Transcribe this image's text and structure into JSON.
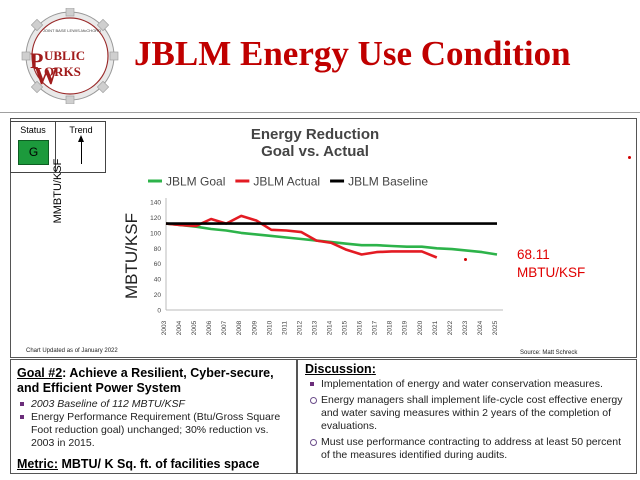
{
  "header": {
    "title": "JBLM Energy Use Condition",
    "logo_text": "PUBLIC WORKS",
    "logo_small": "JOINT BASE LEWIS-McCHORD"
  },
  "status": {
    "status_label": "Status",
    "status_value": "G",
    "trend_label": "Trend",
    "trend_icon": "arrow-up-icon",
    "status_color": "#1c9a3c"
  },
  "side_label": "MMBTU/KSF",
  "footer": {
    "updated": "Chart Updated as of January 2022",
    "source": "Source:  Matt Schreck"
  },
  "annotation": {
    "value": "68.11",
    "unit": "MBTU/KSF"
  },
  "chart_data": {
    "type": "line",
    "title": "Energy Reduction",
    "subtitle": "Goal vs. Actual",
    "ylabel": "MBTU/KSF",
    "xlabel": "",
    "ylim": [
      0,
      140
    ],
    "yticks": [
      0,
      20,
      40,
      60,
      80,
      100,
      120,
      140
    ],
    "grid": false,
    "legend_position": "top",
    "categories": [
      "2003",
      "2004",
      "2005",
      "2006",
      "2007",
      "2008",
      "2009",
      "2010",
      "2011",
      "2012",
      "2013",
      "2014",
      "2015",
      "2016",
      "2017",
      "2018",
      "2019",
      "2020",
      "2021",
      "2022",
      "2023",
      "2024",
      "2025"
    ],
    "series": [
      {
        "name": "JBLM Goal",
        "color": "#2db34a",
        "values": [
          112,
          110,
          108,
          105,
          103,
          100,
          98,
          96,
          94,
          92,
          90,
          88,
          86,
          84,
          84,
          83,
          82,
          82,
          80,
          79,
          77,
          75,
          72
        ]
      },
      {
        "name": "JBLM Actual",
        "color": "#e31b23",
        "values": [
          112,
          110,
          109,
          118,
          112,
          122,
          116,
          104,
          103,
          101,
          90,
          87,
          78,
          72,
          75,
          76,
          76,
          76,
          68.11,
          null,
          null,
          null,
          null
        ]
      },
      {
        "name": "JBLM Baseline",
        "color": "#000000",
        "values": [
          112,
          112,
          112,
          112,
          112,
          112,
          112,
          112,
          112,
          112,
          112,
          112,
          112,
          112,
          112,
          112,
          112,
          112,
          112,
          112,
          112,
          112,
          112
        ]
      }
    ]
  },
  "goal": {
    "title_prefix": "Goal #2",
    "title_rest": ": Achieve a Resilient, Cyber-secure, and Efficient Power System",
    "items": [
      "2003 Baseline of 112 MBTU/KSF",
      "Energy Performance Requirement (Btu/Gross Square Foot reduction goal) unchanged; 30% reduction vs. 2003 in 2015."
    ],
    "metric_label": "Metric:",
    "metric_value": " MBTU/ K Sq. ft. of facilities space"
  },
  "discussion": {
    "title": "Discussion",
    "title_suffix": ":",
    "items": [
      "Implementation of energy and water conservation measures.",
      "Energy managers shall implement life-cycle cost effective energy and water saving measures within 2 years of the completion of evaluations.",
      "Must use performance contracting to address at least 50 percent of the measures identified during audits."
    ]
  }
}
